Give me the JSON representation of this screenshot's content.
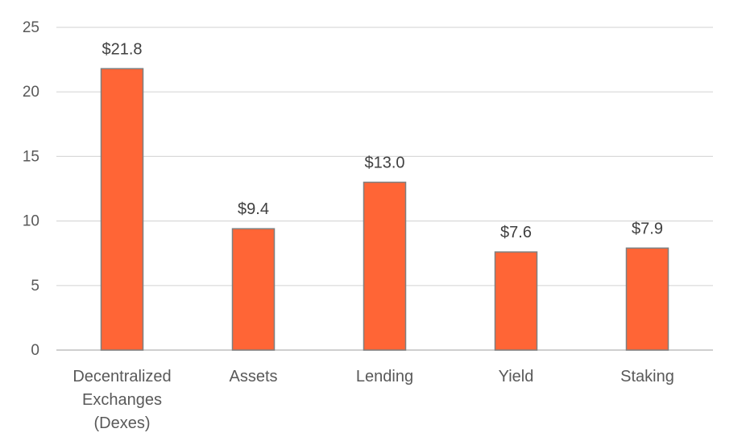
{
  "chart_data": {
    "type": "bar",
    "title": "",
    "xlabel": "",
    "ylabel": "",
    "categories": [
      [
        "Decentralized",
        "Exchanges",
        "(Dexes)"
      ],
      [
        "Assets"
      ],
      [
        "Lending"
      ],
      [
        "Yield"
      ],
      [
        "Staking"
      ]
    ],
    "values": [
      21.8,
      9.4,
      13.0,
      7.6,
      7.9
    ],
    "data_labels": [
      "$21.8",
      "$9.4",
      "$13.0",
      "$7.6",
      "$7.9"
    ],
    "ylim": [
      0,
      25
    ],
    "yticks": [
      0,
      5,
      10,
      15,
      20,
      25
    ],
    "ytick_labels": [
      "0",
      "5",
      "10",
      "15",
      "20",
      "25"
    ],
    "grid": true,
    "legend": "none",
    "colors": {
      "bar_fill": "#FF6536",
      "bar_stroke": "#7F7F7F",
      "grid": "#D9D9D9",
      "axis": "#BFBFBF"
    }
  }
}
